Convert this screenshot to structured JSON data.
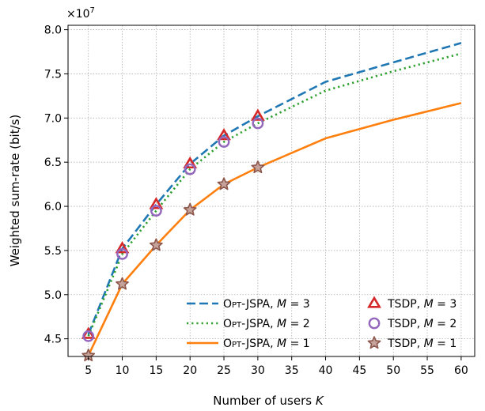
{
  "chart_data": {
    "type": "line",
    "xlabel": "Number of users",
    "xlabel_var": "K",
    "ylabel": "Weighted sum-rate (bit/s)",
    "y_multiplier": "×10",
    "y_multiplier_exp": "7",
    "x_ticks": [
      5,
      10,
      15,
      20,
      25,
      30,
      35,
      40,
      45,
      50,
      55,
      60
    ],
    "y_ticks": [
      4.5,
      5.0,
      5.5,
      6.0,
      6.5,
      7.0,
      7.5,
      8.0
    ],
    "y_tick_labels": [
      "4.5",
      "5.0",
      "5.5",
      "6.0",
      "6.5",
      "7.0",
      "7.5",
      "8.0"
    ],
    "xlim": [
      2,
      62
    ],
    "ylim": [
      4.3,
      8.05
    ],
    "grid": true,
    "legend_position": "bottom-right",
    "series": [
      {
        "kind": "line",
        "name_main": "Opt-JSPA",
        "name_var": "M",
        "name_rhs": "3",
        "color": "#1f77b4",
        "dash": "dashed",
        "x": [
          5,
          10,
          15,
          20,
          25,
          30,
          40,
          50,
          60
        ],
        "y": [
          4.55,
          5.52,
          6.02,
          6.48,
          6.8,
          7.02,
          7.41,
          7.63,
          7.85
        ]
      },
      {
        "kind": "line",
        "name_main": "Opt-JSPA",
        "name_var": "M",
        "name_rhs": "2",
        "color": "#2ca02c",
        "dash": "dotted",
        "x": [
          5,
          10,
          15,
          20,
          25,
          30,
          40,
          50,
          60
        ],
        "y": [
          4.53,
          5.46,
          5.95,
          6.42,
          6.73,
          6.94,
          7.31,
          7.53,
          7.73
        ]
      },
      {
        "kind": "line",
        "name_main": "Opt-JSPA",
        "name_var": "M",
        "name_rhs": "1",
        "color": "#ff7f0e",
        "dash": "solid",
        "x": [
          5,
          10,
          15,
          20,
          25,
          30,
          40,
          50,
          60
        ],
        "y": [
          4.31,
          5.12,
          5.56,
          5.96,
          6.25,
          6.44,
          6.77,
          6.98,
          7.17
        ]
      },
      {
        "kind": "marker",
        "name_main": "TSDP",
        "name_var": "M",
        "name_rhs": "3",
        "color": "#d62728",
        "marker": "triangle",
        "x": [
          5,
          10,
          15,
          20,
          25,
          30
        ],
        "y": [
          4.55,
          5.52,
          6.02,
          6.48,
          6.8,
          7.02
        ]
      },
      {
        "kind": "marker",
        "name_main": "TSDP",
        "name_var": "M",
        "name_rhs": "2",
        "color": "#9467bd",
        "marker": "circle",
        "x": [
          5,
          10,
          15,
          20,
          25,
          30
        ],
        "y": [
          4.53,
          5.46,
          5.95,
          6.42,
          6.73,
          6.94
        ]
      },
      {
        "kind": "marker",
        "name_main": "TSDP",
        "name_var": "M",
        "name_rhs": "1",
        "color": "#8c564b",
        "marker": "star",
        "x": [
          5,
          10,
          15,
          20,
          25,
          30
        ],
        "y": [
          4.31,
          5.12,
          5.56,
          5.96,
          6.25,
          6.44
        ]
      }
    ]
  }
}
